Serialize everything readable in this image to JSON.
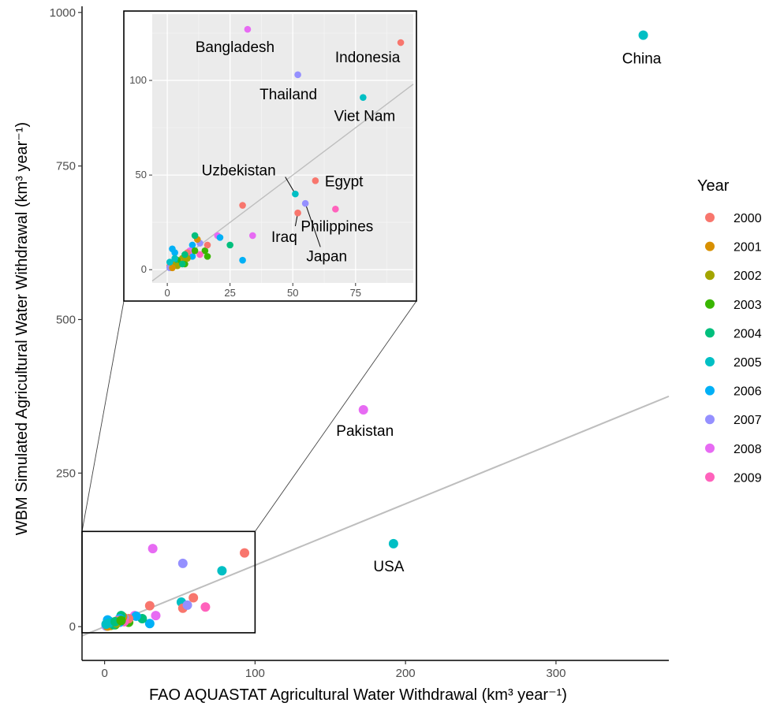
{
  "chart_data": {
    "type": "scatter",
    "xlabel": "FAO AQUASTAT Agricultural Water Withdrawal",
    "xlabel_unit": "(km³ year⁻¹)",
    "ylabel": "WBM Simulated Agricultural Water Withdrawal",
    "ylabel_unit": "(km³ year⁻¹)",
    "xlim": [
      -15,
      375
    ],
    "ylim": [
      -55,
      1010
    ],
    "xticks": [
      0,
      100,
      200,
      300
    ],
    "yticks": [
      0,
      250,
      500,
      750,
      1000
    ],
    "reference_line": "1:1 fit",
    "legend": {
      "title": "Year",
      "placement": "right",
      "entries": [
        {
          "label": "2000",
          "color": "#F8766D"
        },
        {
          "label": "2001",
          "color": "#D89000"
        },
        {
          "label": "2002",
          "color": "#A3A500"
        },
        {
          "label": "2003",
          "color": "#39B600"
        },
        {
          "label": "2004",
          "color": "#00BF7D"
        },
        {
          "label": "2005",
          "color": "#00BFC4"
        },
        {
          "label": "2006",
          "color": "#00B0F6"
        },
        {
          "label": "2007",
          "color": "#9590FF"
        },
        {
          "label": "2008",
          "color": "#E76BF3"
        },
        {
          "label": "2009",
          "color": "#FF62BC"
        }
      ]
    },
    "points": [
      {
        "x": 358,
        "y": 963,
        "year": "2005",
        "label": "China"
      },
      {
        "x": 172,
        "y": 353,
        "year": "2008",
        "label": "Pakistan"
      },
      {
        "x": 192,
        "y": 135,
        "year": "2005",
        "label": "USA"
      },
      {
        "x": 32,
        "y": 127,
        "year": "2008",
        "label": "Bangladesh"
      },
      {
        "x": 52,
        "y": 103,
        "year": "2007",
        "label": "Thailand"
      },
      {
        "x": 93,
        "y": 120,
        "year": "2000",
        "label": "Indonesia"
      },
      {
        "x": 78,
        "y": 91,
        "year": "2005",
        "label": "Viet Nam"
      },
      {
        "x": 59,
        "y": 47,
        "year": "2000",
        "label": "Egypt"
      },
      {
        "x": 51,
        "y": 40,
        "year": "2005",
        "label": "Uzbekistan"
      },
      {
        "x": 52,
        "y": 30,
        "year": "2000",
        "label": "Iraq"
      },
      {
        "x": 55,
        "y": 35,
        "year": "2007",
        "label": "Japan"
      },
      {
        "x": 67,
        "y": 32,
        "year": "2009",
        "label": "Philippines"
      },
      {
        "x": 30,
        "y": 34,
        "year": "2000",
        "label": ""
      },
      {
        "x": 34,
        "y": 18,
        "year": "2008",
        "label": ""
      },
      {
        "x": 30,
        "y": 5,
        "year": "2006",
        "label": ""
      },
      {
        "x": 25,
        "y": 13,
        "year": "2004",
        "label": ""
      },
      {
        "x": 20,
        "y": 18,
        "year": "2008",
        "label": ""
      },
      {
        "x": 21,
        "y": 17,
        "year": "2006",
        "label": ""
      },
      {
        "x": 16,
        "y": 7,
        "year": "2003",
        "label": ""
      },
      {
        "x": 15,
        "y": 10,
        "year": "2003",
        "label": ""
      },
      {
        "x": 16,
        "y": 13,
        "year": "2000",
        "label": ""
      },
      {
        "x": 13,
        "y": 14,
        "year": "2007",
        "label": ""
      },
      {
        "x": 13,
        "y": 8,
        "year": "2009",
        "label": ""
      },
      {
        "x": 12,
        "y": 16,
        "year": "2001",
        "label": ""
      },
      {
        "x": 11,
        "y": 18,
        "year": "2004",
        "label": ""
      },
      {
        "x": 10,
        "y": 13,
        "year": "2006",
        "label": ""
      },
      {
        "x": 10,
        "y": 7,
        "year": "2006",
        "label": ""
      },
      {
        "x": 9,
        "y": 10,
        "year": "2008",
        "label": ""
      },
      {
        "x": 8,
        "y": 9,
        "year": "2000",
        "label": ""
      },
      {
        "x": 7,
        "y": 3,
        "year": "2003",
        "label": ""
      },
      {
        "x": 6,
        "y": 6,
        "year": "2002",
        "label": ""
      },
      {
        "x": 5,
        "y": 4,
        "year": "2001",
        "label": ""
      },
      {
        "x": 4,
        "y": 5,
        "year": "2003",
        "label": ""
      },
      {
        "x": 3,
        "y": 9,
        "year": "2006",
        "label": ""
      },
      {
        "x": 3,
        "y": 4,
        "year": "2004",
        "label": ""
      },
      {
        "x": 2,
        "y": 11,
        "year": "2006",
        "label": ""
      },
      {
        "x": 2,
        "y": 3,
        "year": "2002",
        "label": ""
      },
      {
        "x": 1,
        "y": 2,
        "year": "2000",
        "label": ""
      },
      {
        "x": 1,
        "y": 1,
        "year": "2007",
        "label": ""
      },
      {
        "x": 4,
        "y": 2,
        "year": "2002",
        "label": ""
      },
      {
        "x": 2,
        "y": 1,
        "year": "2001",
        "label": ""
      },
      {
        "x": 6,
        "y": 3,
        "year": "2004",
        "label": ""
      },
      {
        "x": 8,
        "y": 6,
        "year": "2002",
        "label": ""
      },
      {
        "x": 3,
        "y": 6,
        "year": "2005",
        "label": ""
      },
      {
        "x": 1,
        "y": 4,
        "year": "2005",
        "label": ""
      },
      {
        "x": 7,
        "y": 8,
        "year": "2004",
        "label": ""
      },
      {
        "x": 11,
        "y": 10,
        "year": "2003",
        "label": ""
      }
    ],
    "inset": {
      "xlim": [
        -6,
        98
      ],
      "ylim": [
        -7,
        135
      ],
      "xticks": [
        0,
        25,
        50,
        75
      ],
      "yticks": [
        0,
        50,
        100
      ],
      "zoom_box": {
        "x": [
          -15,
          100
        ],
        "y": [
          -10,
          155
        ]
      }
    }
  }
}
